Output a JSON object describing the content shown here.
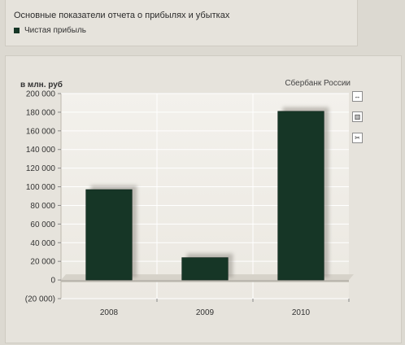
{
  "header": {
    "title": "Основные показатели отчета о прибылях и убытках"
  },
  "legend": {
    "items": [
      {
        "label": "Чистая прибыль",
        "color": "#163626"
      }
    ]
  },
  "chart": {
    "unit_label": "в млн. руб",
    "source_label": "Сбербанк России",
    "tools": [
      {
        "icon": "reset-zoom-icon",
        "glyph": "↔"
      },
      {
        "icon": "bar-chart-icon",
        "glyph": "▥"
      },
      {
        "icon": "print-icon",
        "glyph": "✂"
      }
    ]
  },
  "chart_data": {
    "type": "bar",
    "categories": [
      "2008",
      "2009",
      "2010"
    ],
    "series": [
      {
        "name": "Чистая прибыль",
        "values": [
          97000,
          24000,
          181000
        ],
        "color": "#163626"
      }
    ],
    "ylim": [
      -20000,
      200000
    ],
    "yticks": [
      200000,
      180000,
      160000,
      140000,
      120000,
      100000,
      80000,
      60000,
      40000,
      20000,
      0,
      -20000
    ],
    "ytick_labels": [
      "200 000",
      "180 000",
      "160 000",
      "140 000",
      "120 000",
      "100 000",
      "80 000",
      "60 000",
      "40 000",
      "20 000",
      "0",
      "(20 000)"
    ],
    "ylabel": "в млн. руб",
    "grid": true
  }
}
